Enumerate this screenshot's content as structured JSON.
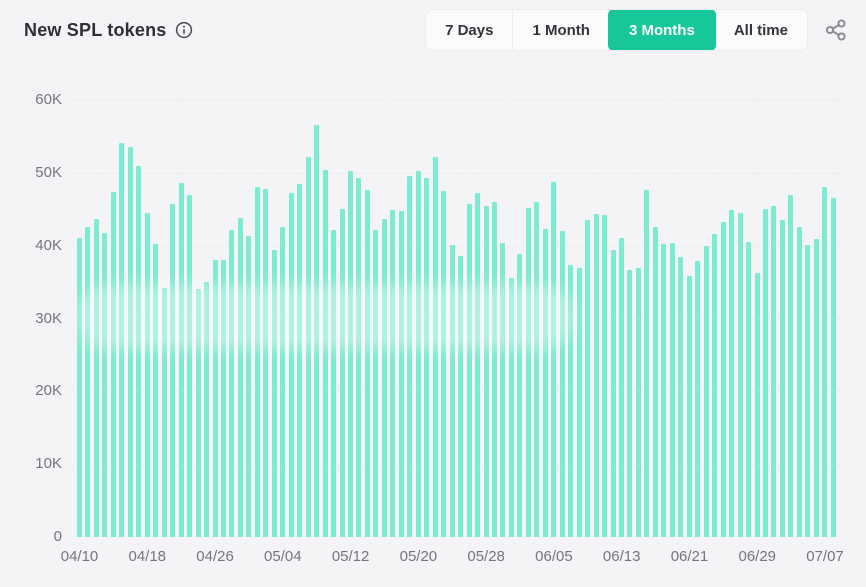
{
  "header": {
    "title": "New SPL tokens",
    "info_icon": "info-circle",
    "share_icon": "share-nodes",
    "range_buttons": [
      {
        "label": "7 Days",
        "active": false
      },
      {
        "label": "1 Month",
        "active": false
      },
      {
        "label": "3 Months",
        "active": true
      },
      {
        "label": "All time",
        "active": false
      }
    ]
  },
  "colors": {
    "background": "#f4f4f6",
    "bar": "#7debd1",
    "accent_active_button": "#17c79a",
    "axis_text": "#75757d",
    "title_text": "#2f2f38",
    "gridline": "#e9e9ec"
  },
  "chart_data": {
    "type": "bar",
    "title": "New SPL tokens",
    "ylabel": "",
    "xlabel": "",
    "unit": "tokens per day",
    "ylim": [
      0,
      60000
    ],
    "grid": "horizontal-dashed",
    "legend": "none",
    "y_tick_labels": [
      "0",
      "10K",
      "20K",
      "30K",
      "40K",
      "50K",
      "60K"
    ],
    "x_tick_labels": [
      "04/10",
      "04/18",
      "04/26",
      "05/04",
      "05/12",
      "05/20",
      "05/28",
      "06/05",
      "06/13",
      "06/21",
      "06/29",
      "07/07"
    ],
    "x_tick_every": 8,
    "x": [
      "04/10",
      "04/11",
      "04/12",
      "04/13",
      "04/14",
      "04/15",
      "04/16",
      "04/17",
      "04/18",
      "04/19",
      "04/20",
      "04/21",
      "04/22",
      "04/23",
      "04/24",
      "04/25",
      "04/26",
      "04/27",
      "04/28",
      "04/29",
      "04/30",
      "05/01",
      "05/02",
      "05/03",
      "05/04",
      "05/05",
      "05/06",
      "05/07",
      "05/08",
      "05/09",
      "05/10",
      "05/11",
      "05/12",
      "05/13",
      "05/14",
      "05/15",
      "05/16",
      "05/17",
      "05/18",
      "05/19",
      "05/20",
      "05/21",
      "05/22",
      "05/23",
      "05/24",
      "05/25",
      "05/26",
      "05/27",
      "05/28",
      "05/29",
      "05/30",
      "05/31",
      "06/01",
      "06/02",
      "06/03",
      "06/04",
      "06/05",
      "06/06",
      "06/07",
      "06/08",
      "06/09",
      "06/10",
      "06/11",
      "06/12",
      "06/13",
      "06/14",
      "06/15",
      "06/16",
      "06/17",
      "06/18",
      "06/19",
      "06/20",
      "06/21",
      "06/22",
      "06/23",
      "06/24",
      "06/25",
      "06/26",
      "06/27",
      "06/28",
      "06/29",
      "06/30",
      "07/01",
      "07/02",
      "07/03",
      "07/04",
      "07/05",
      "07/06",
      "07/07",
      "07/08"
    ],
    "values": [
      41100,
      42600,
      43600,
      41700,
      47400,
      54100,
      53500,
      51000,
      44500,
      40200,
      34200,
      45700,
      48600,
      47000,
      34100,
      35000,
      38000,
      38100,
      42100,
      43800,
      41300,
      48000,
      47800,
      39400,
      42500,
      47300,
      48400,
      52200,
      56500,
      50400,
      42100,
      45000,
      50300,
      49300,
      47600,
      42200,
      43700,
      44900,
      44700,
      49600,
      50200,
      49300,
      52200,
      47500,
      40100,
      38600,
      45700,
      47300,
      45400,
      46000,
      40300,
      35600,
      38800,
      45200,
      46000,
      42300,
      48700,
      42000,
      37300,
      37000,
      43500,
      44300,
      44200,
      39400,
      41000,
      36700,
      37000,
      47700,
      42500,
      40200,
      40300,
      38500,
      35800,
      37900,
      39900,
      41600,
      43300,
      44900,
      44500,
      40500,
      36300,
      45100,
      45400,
      43500,
      47000,
      42600,
      40100,
      40900,
      48000,
      46600
    ]
  }
}
